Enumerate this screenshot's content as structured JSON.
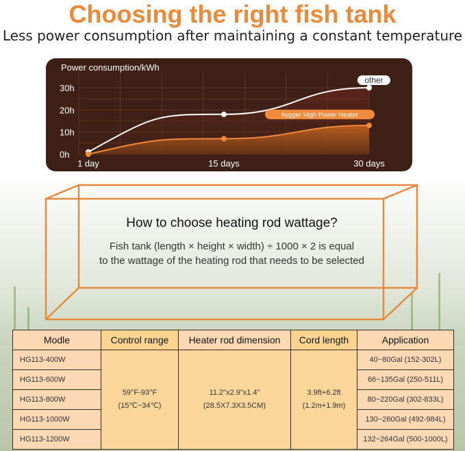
{
  "title": "Choosing the right fish tank",
  "subtitle": "Less power consumption after maintaining a constant temperature",
  "chart_data": {
    "type": "area",
    "title": "Power consumption/kWh",
    "x_tick_labels": [
      "1 day",
      "15 days",
      "30 days"
    ],
    "y_tick_labels": [
      "0h",
      "10h",
      "20h",
      "30h"
    ],
    "x": [
      1,
      15,
      30
    ],
    "ylim": [
      0,
      32
    ],
    "grid": true,
    "series": [
      {
        "name": "other",
        "values": [
          1,
          18,
          30
        ],
        "color": "#ffffff"
      },
      {
        "name": "hygger High Power Heater",
        "values": [
          0,
          7,
          13
        ],
        "color": "#f08a3c"
      }
    ]
  },
  "tank": {
    "heading": "How to choose heating rod wattage?",
    "line1": "Fish tank (length × height × width) ÷ 1000 × 2 is equal",
    "line2": "to the wattage of the heating rod that needs to be selected"
  },
  "table": {
    "headers": [
      "Modle",
      "Control range",
      "Heater rod dimension",
      "Cord length",
      "Application"
    ],
    "models": [
      "HG113-400W",
      "HG113-600W",
      "HG113-800W",
      "HG113-1000W",
      "HG113-1200W"
    ],
    "control_range": [
      "59°F-93°F",
      "(15℃~34℃)"
    ],
    "dimension": [
      "11.2\"x2.9\"x1.4\"",
      "(28.5X7.3X3.5CM)"
    ],
    "cord": [
      "3.9ft+6.2ft",
      "(1.2m+1.9m)"
    ],
    "applications": [
      "40~80Gal (152-302L)",
      "66~135Gal (250-511L)",
      "80~220Gal (302-833L)",
      "130~260Gal (492-984L)",
      "132~264Gal (500-1000L)"
    ]
  }
}
